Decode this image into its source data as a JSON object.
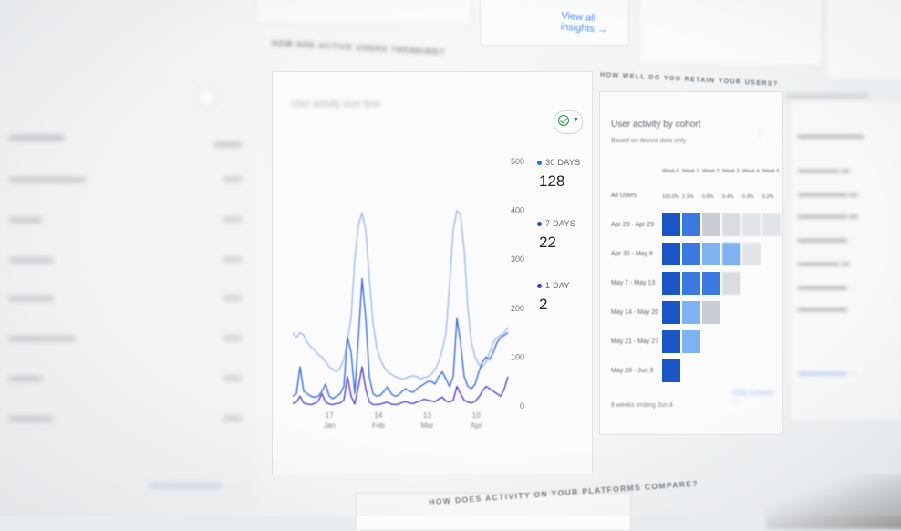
{
  "top": {
    "view_all_insights": "View all insights →"
  },
  "sections": {
    "activity_title": "HOW ARE ACTIVE USERS TRENDING?",
    "retention_title": "HOW WELL DO YOU RETAIN YOUR USERS?",
    "platforms_title": "HOW DOES ACTIVITY ON YOUR PLATFORMS COMPARE?"
  },
  "activity_card": {
    "subtitle": "User activity over time",
    "compare_button_icon": "check-circle-icon",
    "dropdown_icon": "chevron-down-icon"
  },
  "chart_data": {
    "type": "line",
    "title": "",
    "xlabel": "",
    "ylabel": "",
    "ylim": [
      0,
      500
    ],
    "yticks": [
      0,
      100,
      200,
      300,
      400,
      500
    ],
    "x_tick_labels": [
      {
        "day": "17",
        "month": "Jan"
      },
      {
        "day": "14",
        "month": "Feb"
      },
      {
        "day": "13",
        "month": "Mar"
      },
      {
        "day": "10",
        "month": "Apr"
      }
    ],
    "x": [
      0,
      1,
      2,
      3,
      4,
      5,
      6,
      7,
      8,
      9,
      10,
      11,
      12,
      13,
      14,
      15,
      16,
      17,
      18,
      19,
      20,
      21,
      22,
      23,
      24,
      25,
      26,
      27,
      28,
      29,
      30,
      31,
      32,
      33,
      34,
      35,
      36,
      37,
      38,
      39,
      40,
      41,
      42,
      43,
      44,
      45,
      46,
      47,
      48,
      49,
      50,
      51,
      52,
      53,
      54,
      55,
      56,
      57,
      58,
      59
    ],
    "series": [
      {
        "name": "30 DAYS",
        "color": "#a9c1f0",
        "values": [
          150,
          140,
          150,
          145,
          130,
          120,
          115,
          105,
          100,
          90,
          80,
          75,
          70,
          78,
          95,
          135,
          180,
          300,
          370,
          395,
          360,
          260,
          170,
          120,
          95,
          80,
          70,
          65,
          60,
          58,
          55,
          57,
          60,
          62,
          60,
          55,
          58,
          60,
          65,
          75,
          90,
          115,
          150,
          250,
          360,
          400,
          390,
          320,
          200,
          130,
          100,
          85,
          80,
          90,
          110,
          130,
          140,
          145,
          150,
          160
        ]
      },
      {
        "name": "7 DAYS",
        "color": "#3b6fe0",
        "values": [
          20,
          25,
          80,
          30,
          25,
          20,
          18,
          20,
          30,
          45,
          20,
          15,
          20,
          25,
          40,
          140,
          110,
          25,
          140,
          260,
          180,
          60,
          25,
          20,
          22,
          30,
          40,
          25,
          20,
          22,
          30,
          35,
          30,
          28,
          35,
          40,
          45,
          50,
          50,
          45,
          60,
          70,
          55,
          40,
          60,
          180,
          130,
          60,
          40,
          35,
          45,
          70,
          90,
          100,
          95,
          110,
          130,
          140,
          145,
          150
        ]
      },
      {
        "name": "1 DAY",
        "color": "#5a3fc0",
        "values": [
          5,
          8,
          20,
          6,
          4,
          3,
          5,
          10,
          25,
          8,
          4,
          3,
          5,
          6,
          12,
          60,
          20,
          4,
          40,
          80,
          35,
          8,
          3,
          3,
          4,
          6,
          8,
          4,
          3,
          4,
          7,
          9,
          6,
          5,
          8,
          10,
          14,
          12,
          10,
          9,
          14,
          18,
          10,
          8,
          12,
          40,
          25,
          12,
          8,
          6,
          10,
          18,
          30,
          40,
          35,
          30,
          25,
          20,
          35,
          60
        ]
      }
    ],
    "legend": {
      "position": "right",
      "entries": [
        {
          "label": "30 DAYS",
          "value": "128",
          "color": "#1a73e8"
        },
        {
          "label": "7 DAYS",
          "value": "22",
          "color": "#1a56c4"
        },
        {
          "label": "1 DAY",
          "value": "2",
          "color": "#4b2fbf"
        }
      ]
    },
    "grid": false
  },
  "cohort": {
    "title": "User activity by cohort",
    "subtitle": "Based on device data only",
    "columns": [
      "Week 0",
      "Week 1",
      "Week 2",
      "Week 3",
      "Week 4",
      "Week 5"
    ],
    "all_users_values": [
      "100.0%",
      "2.1%",
      "0.8%",
      "0.4%",
      "0.3%",
      "0.2%"
    ],
    "all_users_label": "All Users",
    "rows": [
      {
        "label": "Apr 23 - Apr 29",
        "cells": 6
      },
      {
        "label": "Apr 30 - May 6",
        "cells": 5
      },
      {
        "label": "May 7 - May 13",
        "cells": 4
      },
      {
        "label": "May 14 - May 20",
        "cells": 3
      },
      {
        "label": "May 21 - May 27",
        "cells": 2
      },
      {
        "label": "May 28 - Jun 3",
        "cells": 1
      }
    ],
    "footer": "6 weeks ending Jun 4",
    "footer_link": "View cohorts →",
    "cell_colors": [
      "#1a56c4",
      "#3b78e0",
      "#7fb3ef",
      "#c9ced4",
      "#d9dde1",
      "#e2e5e8"
    ]
  }
}
